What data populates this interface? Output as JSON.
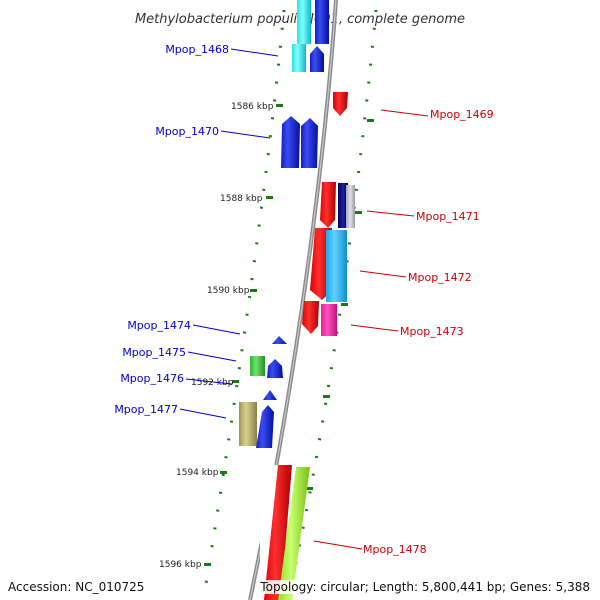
{
  "title": "Methylobacterium populi BJ001, complete genome",
  "footer": {
    "accession": "Accession: NC_010725",
    "summary": "Topology: circular; Length: 5,800,441 bp; Genes: 5,388"
  },
  "kbp_labels": [
    "1586 kbp",
    "1588 kbp",
    "1590 kbp",
    "1592 kbp",
    "1594 kbp",
    "1596 kbp"
  ],
  "genes_left": [
    "Mpop_1468",
    "Mpop_1470",
    "Mpop_1474",
    "Mpop_1475",
    "Mpop_1476",
    "Mpop_1477"
  ],
  "genes_right": [
    "Mpop_1469",
    "Mpop_1471",
    "Mpop_1472",
    "Mpop_1473",
    "Mpop_1478"
  ],
  "colors": {
    "forward_label": "#0000cc",
    "reverse_label": "#cc0000",
    "backbone": "#888888",
    "tick": "#1a7a1a"
  }
}
